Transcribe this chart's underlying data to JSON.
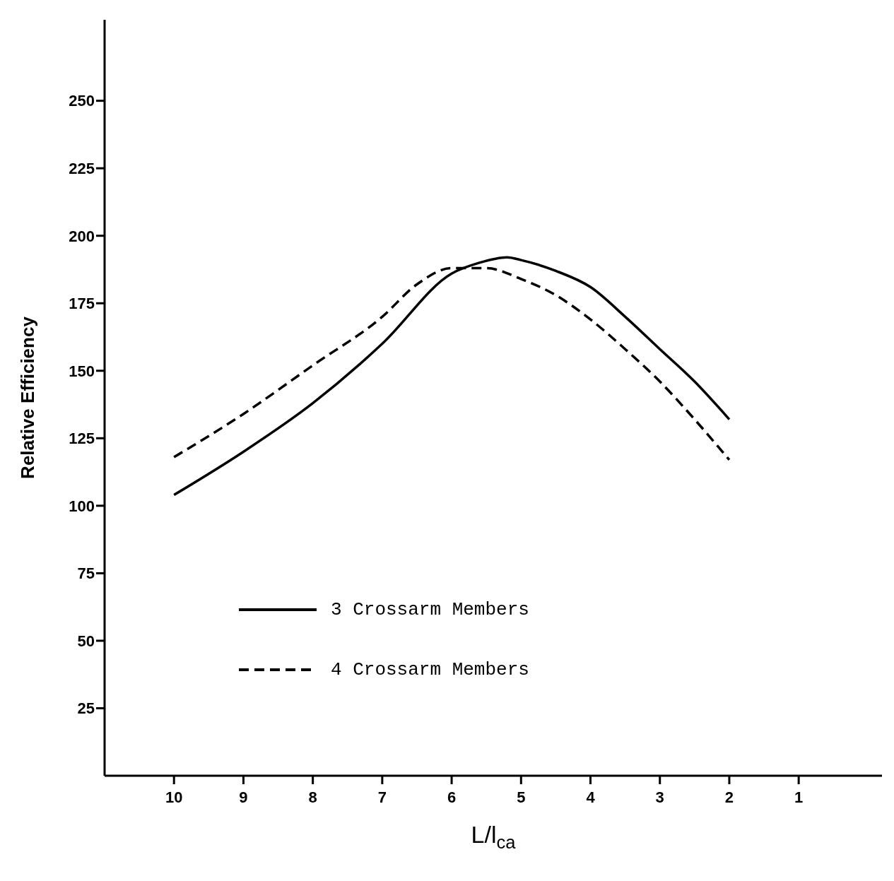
{
  "chart_data": {
    "type": "line",
    "xlabel": "L/l$_{ca}$",
    "ylabel": "Relative Efficiency",
    "xlim": [
      11,
      -0.2
    ],
    "xticks": [
      10,
      9,
      8,
      7,
      6,
      5,
      4,
      3,
      2,
      1
    ],
    "ylim": [
      0,
      280
    ],
    "yticks": [
      25,
      50,
      75,
      100,
      125,
      150,
      175,
      200,
      225,
      250
    ],
    "grid": false,
    "legend": "left",
    "marker": "none",
    "series": [
      {
        "name": "3 Crossarm Members",
        "color": "#000000",
        "line_style": "solid",
        "x": [
          10,
          9,
          8,
          7,
          6,
          5.6,
          5.2,
          5,
          4.5,
          4,
          3.5,
          3,
          2.5,
          2
        ],
        "values": [
          104,
          120,
          138,
          160,
          186,
          190,
          192,
          191,
          187,
          181,
          170,
          158,
          146,
          132
        ]
      },
      {
        "name": "4 Crossarm Members",
        "color": "#000000",
        "line_style": "dashed",
        "x": [
          10,
          9,
          8,
          7,
          6.5,
          6,
          5.5,
          5,
          4.5,
          4,
          3.5,
          3,
          2.5,
          2
        ],
        "values": [
          118,
          134,
          152,
          170,
          182,
          188,
          188,
          184,
          178,
          169,
          158,
          146,
          132,
          117
        ]
      }
    ]
  }
}
